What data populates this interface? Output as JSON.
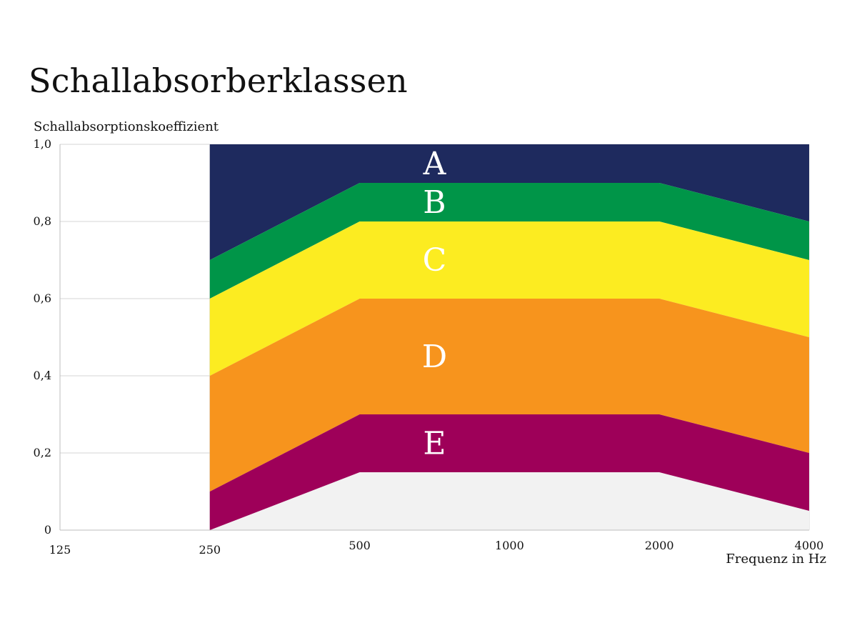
{
  "title": "Schallabsorberklassen",
  "chart_data": {
    "type": "area",
    "title": "Schallabsorberklassen",
    "xlabel": "Frequenz in Hz",
    "ylabel": "Schallabsorptionskoeffizient",
    "x_scale": "log2",
    "x_ticks": [
      125,
      250,
      500,
      1000,
      2000,
      4000
    ],
    "x_tick_labels": [
      "125",
      "250",
      "500",
      "1000",
      "2000",
      "4000"
    ],
    "y_ticks": [
      0,
      0.2,
      0.4,
      0.6,
      0.8,
      1.0
    ],
    "y_tick_labels": [
      "0",
      "0,2",
      "0,4",
      "0,6",
      "0,8",
      "1,0"
    ],
    "ylim": [
      0,
      1.0
    ],
    "grid": true,
    "bands": [
      {
        "label": "A",
        "color": "#1e2a5e",
        "x": [
          250,
          500,
          2000,
          4000
        ],
        "lower": [
          0.7,
          0.9,
          0.9,
          0.8
        ],
        "upper": [
          1.0,
          1.0,
          1.0,
          1.0
        ]
      },
      {
        "label": "B",
        "color": "#009548",
        "x": [
          250,
          500,
          2000,
          4000
        ],
        "lower": [
          0.6,
          0.8,
          0.8,
          0.7
        ],
        "upper": [
          0.7,
          0.9,
          0.9,
          0.8
        ]
      },
      {
        "label": "C",
        "color": "#fcec21",
        "x": [
          250,
          500,
          2000,
          4000
        ],
        "lower": [
          0.4,
          0.6,
          0.6,
          0.5
        ],
        "upper": [
          0.6,
          0.8,
          0.8,
          0.7
        ]
      },
      {
        "label": "D",
        "color": "#f7941d",
        "x": [
          250,
          500,
          2000,
          4000
        ],
        "lower": [
          0.1,
          0.3,
          0.3,
          0.2
        ],
        "upper": [
          0.4,
          0.6,
          0.6,
          0.5
        ]
      },
      {
        "label": "E",
        "color": "#9e0059",
        "x": [
          250,
          500,
          2000,
          4000
        ],
        "lower": [
          0.0,
          0.15,
          0.15,
          0.05
        ],
        "upper": [
          0.1,
          0.3,
          0.3,
          0.2
        ]
      }
    ],
    "unclassified_region": {
      "color": "#f2f2f2",
      "x": [
        250,
        500,
        2000,
        4000
      ],
      "lower": [
        0,
        0,
        0,
        0
      ],
      "upper": [
        0.0,
        0.15,
        0.15,
        0.05
      ]
    },
    "band_label_x": 707
  }
}
